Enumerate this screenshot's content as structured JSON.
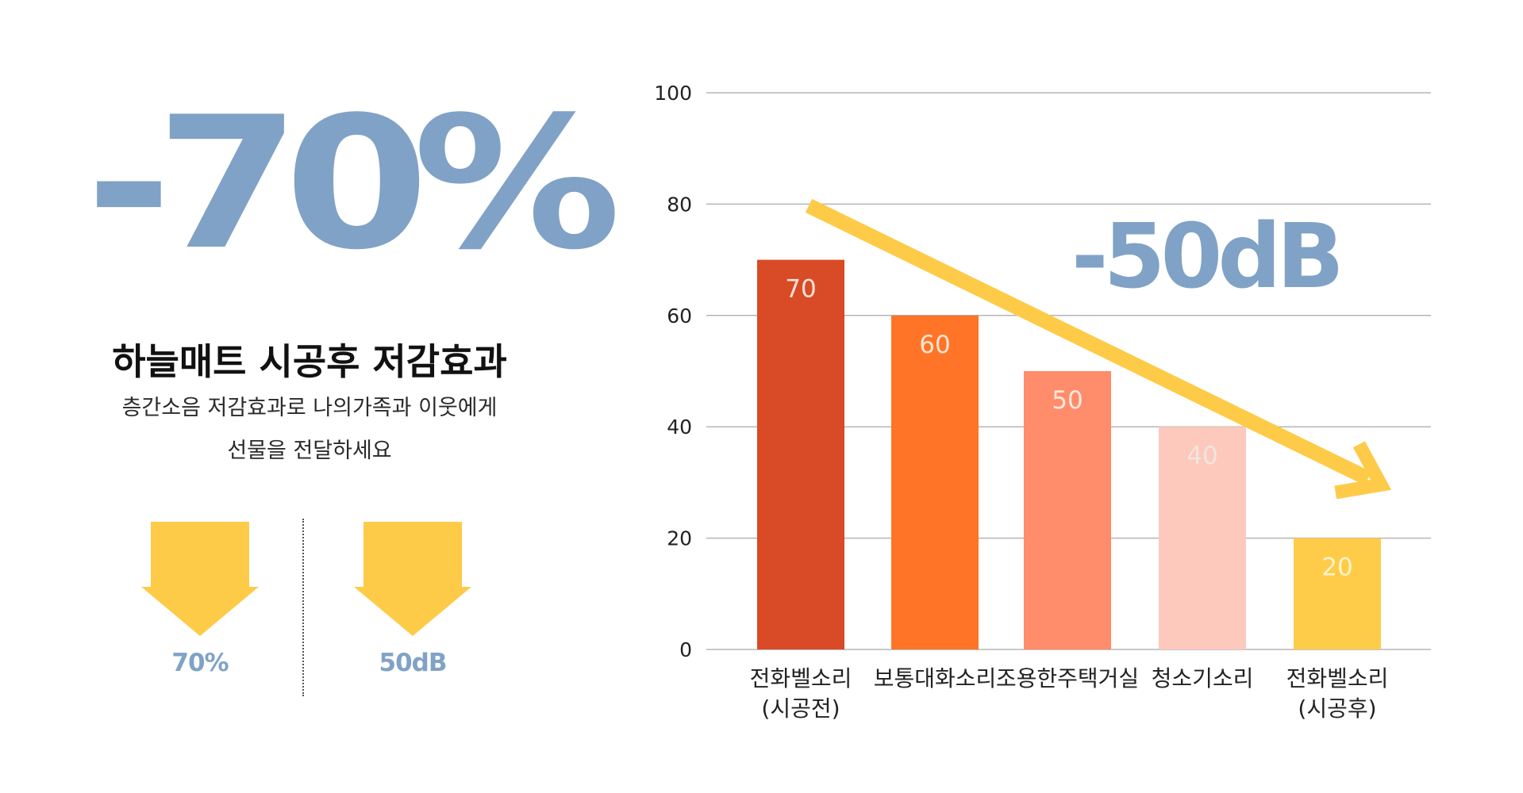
{
  "left_panel": {
    "big_stat": "-70%",
    "title": "하늘매트 시공후 저감효과",
    "description_line1": "층간소음 저감효과로 나의가족과 이웃에게",
    "description_line2": "선물을 전달하세요",
    "arrow_items": [
      {
        "label": "70%",
        "icon": "down-arrow-icon"
      },
      {
        "label": "50dB",
        "icon": "down-arrow-icon"
      }
    ]
  },
  "chart_data": {
    "type": "bar",
    "categories": [
      "전화벨소리\n(시공전)",
      "보통대화소리",
      "조용한주택거실",
      "청소기소리",
      "전화벨소리\n(시공후)"
    ],
    "values": [
      70,
      60,
      50,
      40,
      20
    ],
    "data_labels": [
      "70",
      "60",
      "50",
      "40",
      "20"
    ],
    "bar_colors": [
      "#D94A26",
      "#FF7427",
      "#FF8C6A",
      "#FDC9BC",
      "#FECC48"
    ],
    "label_colors": [
      "#FBE3D8",
      "#FFE4D2",
      "#FFE8DD",
      "#F1E4DF",
      "#FFF3CC"
    ],
    "ylim": [
      0,
      100
    ],
    "yticks": [
      0,
      20,
      40,
      60,
      80,
      100
    ],
    "ytick_labels": [
      "0",
      "20",
      "40",
      "60",
      "80",
      "100"
    ],
    "grid": true,
    "annotation": "-50dB",
    "trend_arrow": {
      "from_category": 0,
      "from_value": 80,
      "to_category": 4,
      "to_value": 31
    }
  },
  "colors": {
    "stat_blue": "#80A2C6",
    "arrow_yellow": "#FECB48",
    "grid": "#B5B5B5"
  }
}
